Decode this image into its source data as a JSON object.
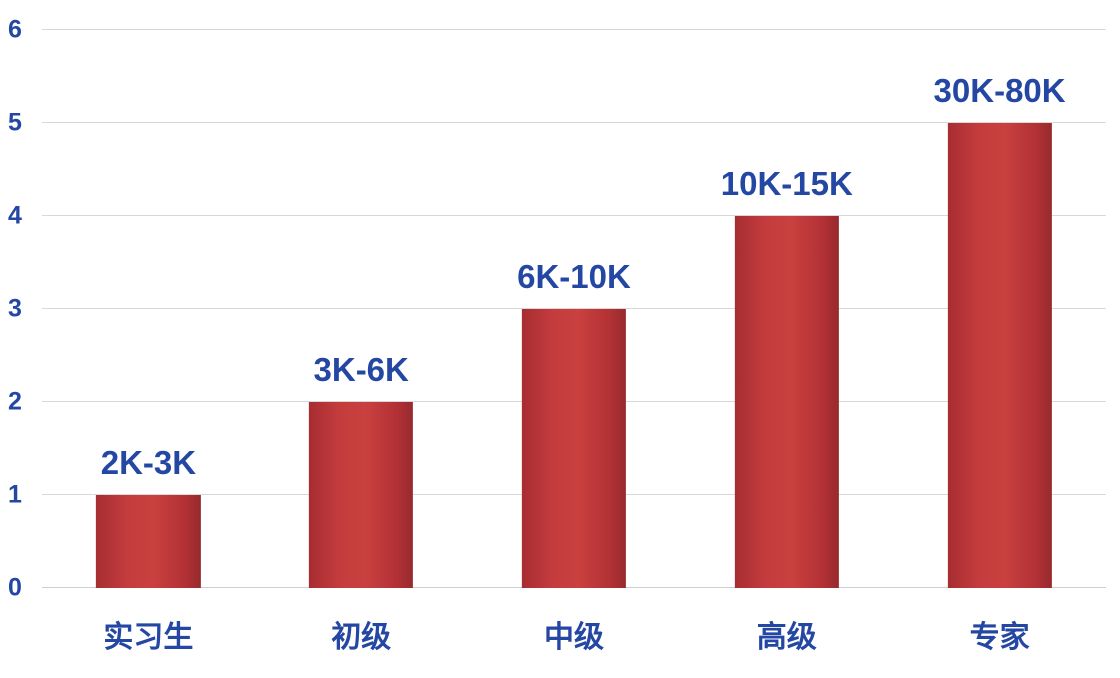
{
  "chart_data": {
    "type": "bar",
    "title": "",
    "xlabel": "",
    "ylabel": "",
    "categories": [
      "实习生",
      "初级",
      "中级",
      "高级",
      "专家"
    ],
    "values": [
      1,
      2,
      3,
      4,
      5
    ],
    "bar_labels": [
      "2K-3K",
      "3K-6K",
      "6K-10K",
      "10K-15K",
      "30K-80K"
    ],
    "ylim": [
      0,
      6
    ],
    "yticks": [
      0,
      1,
      2,
      3,
      4,
      5,
      6
    ],
    "grid": true,
    "legend": false,
    "colors": {
      "bar": "#be3438",
      "bar_edge": "#9e2b2f",
      "value_label_text": "#2447a3",
      "axis_text": "#2447a3",
      "gridline": "#d8d8d8",
      "background": "#ffffff"
    }
  }
}
